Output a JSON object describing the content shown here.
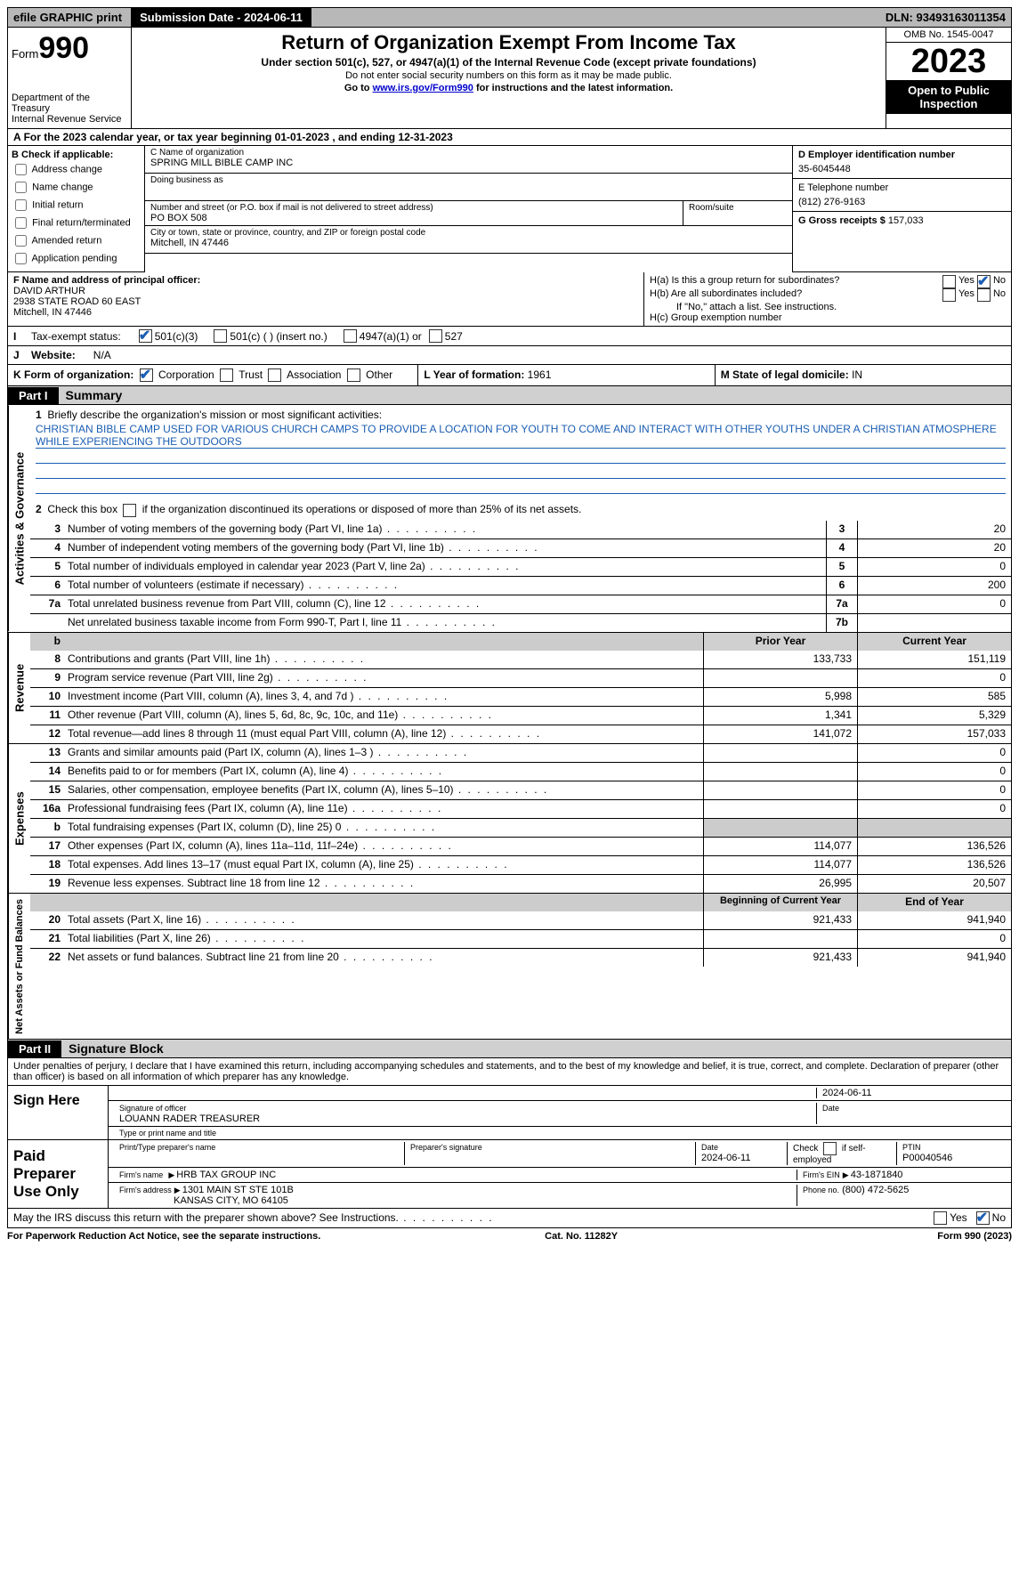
{
  "topbar": {
    "efile": "efile GRAPHIC print",
    "submission": "Submission Date - 2024-06-11",
    "dln": "DLN: 93493163011354"
  },
  "header": {
    "form_label": "Form",
    "form_num": "990",
    "dept": "Department of the Treasury\nInternal Revenue Service",
    "title": "Return of Organization Exempt From Income Tax",
    "sub": "Under section 501(c), 527, or 4947(a)(1) of the Internal Revenue Code (except private foundations)",
    "note1": "Do not enter social security numbers on this form as it may be made public.",
    "note2_pre": "Go to ",
    "note2_link": "www.irs.gov/Form990",
    "note2_post": " for instructions and the latest information.",
    "omb": "OMB No. 1545-0047",
    "year": "2023",
    "inspect": "Open to Public Inspection"
  },
  "rowA": "For the 2023 calendar year, or tax year beginning 01-01-2023   , and ending 12-31-2023",
  "boxB": {
    "title": "B Check if applicable:",
    "opts": [
      "Address change",
      "Name change",
      "Initial return",
      "Final return/terminated",
      "Amended return",
      "Application pending"
    ]
  },
  "boxC": {
    "name_lbl": "C Name of organization",
    "name": "SPRING MILL BIBLE CAMP INC",
    "dba_lbl": "Doing business as",
    "addr_lbl": "Number and street (or P.O. box if mail is not delivered to street address)",
    "room_lbl": "Room/suite",
    "addr": "PO BOX 508",
    "city_lbl": "City or town, state or province, country, and ZIP or foreign postal code",
    "city": "Mitchell, IN  47446"
  },
  "boxD": {
    "ein_lbl": "D Employer identification number",
    "ein": "35-6045448",
    "phone_lbl": "E Telephone number",
    "phone": "(812) 276-9163",
    "gross_lbl": "G Gross receipts $",
    "gross": "157,033"
  },
  "boxF": {
    "lbl": "F  Name and address of principal officer:",
    "name": "DAVID ARTHUR",
    "addr1": "2938 STATE ROAD 60 EAST",
    "addr2": "Mitchell, IN  47446"
  },
  "boxH": {
    "a": "H(a)  Is this a group return for subordinates?",
    "b": "H(b)  Are all subordinates included?",
    "b_note": "If \"No,\" attach a list. See instructions.",
    "c": "H(c)  Group exemption number",
    "yes": "Yes",
    "no": "No"
  },
  "rowI": {
    "lbl": "Tax-exempt status:",
    "o1": "501(c)(3)",
    "o2": "501(c) (  ) (insert no.)",
    "o3": "4947(a)(1) or",
    "o4": "527"
  },
  "rowJ": {
    "lbl": "Website:",
    "val": "N/A"
  },
  "rowK": {
    "lbl": "K Form of organization:",
    "o1": "Corporation",
    "o2": "Trust",
    "o3": "Association",
    "o4": "Other"
  },
  "rowL": {
    "lbl": "L Year of formation:",
    "val": "1961"
  },
  "rowM": {
    "lbl": "M State of legal domicile:",
    "val": "IN"
  },
  "part1": {
    "tag": "Part I",
    "title": "Summary"
  },
  "mission": {
    "lbl": "Briefly describe the organization's mission or most significant activities:",
    "text": "CHRISTIAN BIBLE CAMP USED FOR VARIOUS CHURCH CAMPS TO PROVIDE A LOCATION FOR YOUTH TO COME AND INTERACT WITH OTHER YOUTHS UNDER A CHRISTIAN ATMOSPHERE WHILE EXPERIENCING THE OUTDOORS"
  },
  "l2": "Check this box        if the organization discontinued its operations or disposed of more than 25% of its net assets.",
  "gov_lines": [
    {
      "n": "3",
      "d": "Number of voting members of the governing body (Part VI, line 1a)",
      "b": "3",
      "v": "20"
    },
    {
      "n": "4",
      "d": "Number of independent voting members of the governing body (Part VI, line 1b)",
      "b": "4",
      "v": "20"
    },
    {
      "n": "5",
      "d": "Total number of individuals employed in calendar year 2023 (Part V, line 2a)",
      "b": "5",
      "v": "0"
    },
    {
      "n": "6",
      "d": "Total number of volunteers (estimate if necessary)",
      "b": "6",
      "v": "200"
    },
    {
      "n": "7a",
      "d": "Total unrelated business revenue from Part VIII, column (C), line 12",
      "b": "7a",
      "v": "0"
    },
    {
      "n": "",
      "d": "Net unrelated business taxable income from Form 990-T, Part I, line 11",
      "b": "7b",
      "v": ""
    }
  ],
  "rev_hdr": {
    "py": "Prior Year",
    "cy": "Current Year"
  },
  "rev_lines": [
    {
      "n": "8",
      "d": "Contributions and grants (Part VIII, line 1h)",
      "p": "133,733",
      "c": "151,119"
    },
    {
      "n": "9",
      "d": "Program service revenue (Part VIII, line 2g)",
      "p": "",
      "c": "0"
    },
    {
      "n": "10",
      "d": "Investment income (Part VIII, column (A), lines 3, 4, and 7d )",
      "p": "5,998",
      "c": "585"
    },
    {
      "n": "11",
      "d": "Other revenue (Part VIII, column (A), lines 5, 6d, 8c, 9c, 10c, and 11e)",
      "p": "1,341",
      "c": "5,329"
    },
    {
      "n": "12",
      "d": "Total revenue—add lines 8 through 11 (must equal Part VIII, column (A), line 12)",
      "p": "141,072",
      "c": "157,033"
    }
  ],
  "exp_lines": [
    {
      "n": "13",
      "d": "Grants and similar amounts paid (Part IX, column (A), lines 1–3 )",
      "p": "",
      "c": "0"
    },
    {
      "n": "14",
      "d": "Benefits paid to or for members (Part IX, column (A), line 4)",
      "p": "",
      "c": "0"
    },
    {
      "n": "15",
      "d": "Salaries, other compensation, employee benefits (Part IX, column (A), lines 5–10)",
      "p": "",
      "c": "0"
    },
    {
      "n": "16a",
      "d": "Professional fundraising fees (Part IX, column (A), line 11e)",
      "p": "",
      "c": "0"
    },
    {
      "n": "b",
      "d": "Total fundraising expenses (Part IX, column (D), line 25) 0",
      "p": "grey",
      "c": "grey"
    },
    {
      "n": "17",
      "d": "Other expenses (Part IX, column (A), lines 11a–11d, 11f–24e)",
      "p": "114,077",
      "c": "136,526"
    },
    {
      "n": "18",
      "d": "Total expenses. Add lines 13–17 (must equal Part IX, column (A), line 25)",
      "p": "114,077",
      "c": "136,526"
    },
    {
      "n": "19",
      "d": "Revenue less expenses. Subtract line 18 from line 12",
      "p": "26,995",
      "c": "20,507"
    }
  ],
  "na_hdr": {
    "b": "Beginning of Current Year",
    "e": "End of Year"
  },
  "na_lines": [
    {
      "n": "20",
      "d": "Total assets (Part X, line 16)",
      "p": "921,433",
      "c": "941,940"
    },
    {
      "n": "21",
      "d": "Total liabilities (Part X, line 26)",
      "p": "",
      "c": "0"
    },
    {
      "n": "22",
      "d": "Net assets or fund balances. Subtract line 21 from line 20",
      "p": "921,433",
      "c": "941,940"
    }
  ],
  "part2": {
    "tag": "Part II",
    "title": "Signature Block"
  },
  "decl": "Under penalties of perjury, I declare that I have examined this return, including accompanying schedules and statements, and to the best of my knowledge and belief, it is true, correct, and complete. Declaration of preparer (other than officer) is based on all information of which preparer has any knowledge.",
  "sign": {
    "here": "Sign Here",
    "sig_lbl": "Signature of officer",
    "officer": "LOUANN RADER  TREASURER",
    "type_lbl": "Type or print name and title",
    "date_lbl": "Date",
    "date": "2024-06-11"
  },
  "paid": {
    "lbl": "Paid Preparer Use Only",
    "name_lbl": "Print/Type preparer's name",
    "sig_lbl": "Preparer's signature",
    "date_lbl": "Date",
    "date": "2024-06-11",
    "check_lbl": "Check        if self-employed",
    "ptin_lbl": "PTIN",
    "ptin": "P00040546",
    "firm_name_lbl": "Firm's name",
    "firm_name": "HRB TAX GROUP INC",
    "firm_ein_lbl": "Firm's EIN",
    "firm_ein": "43-1871840",
    "firm_addr_lbl": "Firm's address",
    "firm_addr1": "1301 MAIN ST STE 101B",
    "firm_addr2": "KANSAS CITY, MO  64105",
    "phone_lbl": "Phone no.",
    "phone": "(800) 472-5625"
  },
  "discuss": "May the IRS discuss this return with the preparer shown above? See Instructions.",
  "footer": {
    "l": "For Paperwork Reduction Act Notice, see the separate instructions.",
    "m": "Cat. No. 11282Y",
    "r": "Form 990 (2023)"
  },
  "side": {
    "gov": "Activities & Governance",
    "rev": "Revenue",
    "exp": "Expenses",
    "na": "Net Assets or Fund Balances"
  }
}
